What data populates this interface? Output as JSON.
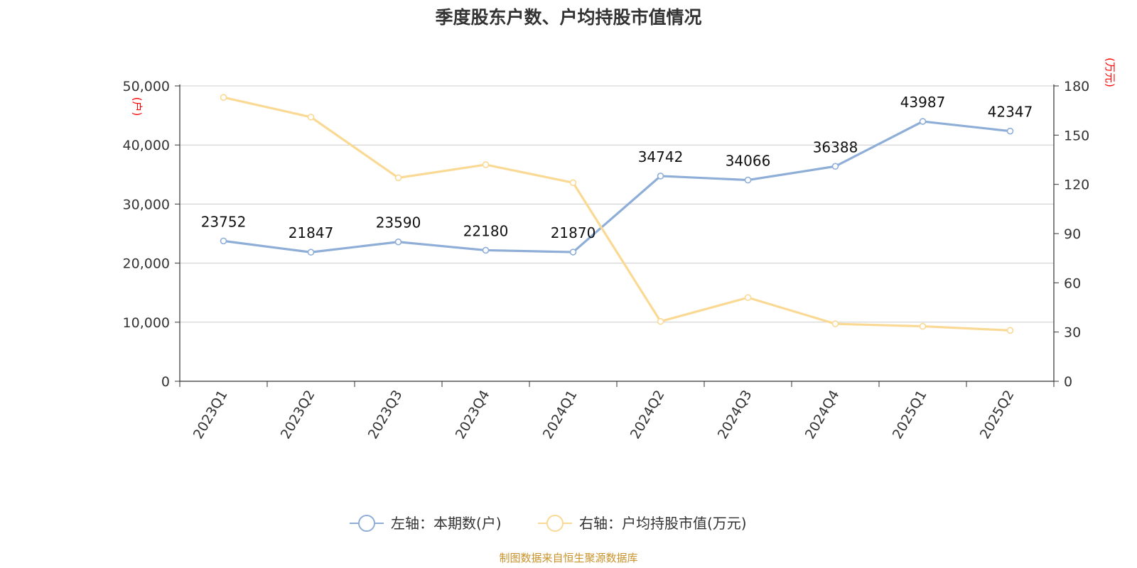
{
  "chart_data": {
    "type": "line",
    "title": "季度股东户数、户均持股市值情况",
    "categories": [
      "2023Q1",
      "2023Q2",
      "2023Q3",
      "2023Q4",
      "2024Q1",
      "2024Q2",
      "2024Q3",
      "2024Q4",
      "2025Q1",
      "2025Q2"
    ],
    "series": [
      {
        "name": "左轴：本期数(户)",
        "axis": "left",
        "color": "#8eaed8",
        "values": [
          23752,
          21847,
          23590,
          22180,
          21870,
          34742,
          34066,
          36388,
          43987,
          42347
        ],
        "show_labels": true
      },
      {
        "name": "右轴：户均持股市值(万元)",
        "axis": "right",
        "color": "#fad994",
        "values": [
          173,
          161,
          124,
          132,
          121,
          36.5,
          51,
          35,
          33.5,
          31
        ],
        "show_labels": false
      }
    ],
    "left_axis": {
      "unit": "(户)",
      "ylim": [
        0,
        50000
      ],
      "ticks": [
        0,
        10000,
        20000,
        30000,
        40000,
        50000
      ],
      "tick_labels": [
        "0",
        "10,000",
        "20,000",
        "30,000",
        "40,000",
        "50,000"
      ]
    },
    "right_axis": {
      "unit": "(万元)",
      "ylim": [
        0,
        180
      ],
      "ticks": [
        0,
        30,
        60,
        90,
        120,
        150,
        180
      ],
      "tick_labels": [
        "0",
        "30",
        "60",
        "90",
        "120",
        "150",
        "180"
      ]
    },
    "grid": true,
    "legend_position": "bottom",
    "unit_color": "#ff0000"
  },
  "source": "制图数据来自恒生聚源数据库",
  "source_color": "#c8922a"
}
